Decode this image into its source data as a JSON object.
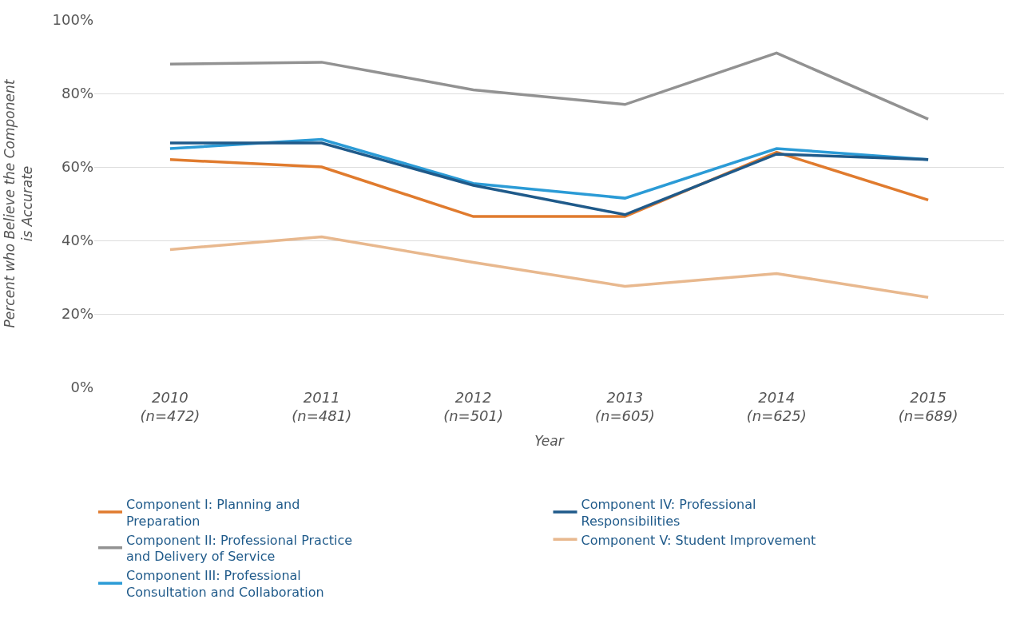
{
  "chart_data": {
    "type": "line",
    "xlabel": "Year",
    "ylabel": "Percent who Believe the Component is Accurate",
    "categories": [
      "2010 (n=472)",
      "2011 (n=481)",
      "2012 (n=501)",
      "2013 (n=605)",
      "2014 (n=625)",
      "2015 (n=689)"
    ],
    "series": [
      {
        "name": "Component I: Planning and Preparation",
        "color": "#e07b2e",
        "values": [
          62,
          60,
          46.5,
          46.5,
          64,
          51
        ]
      },
      {
        "name": "Component II: Professional Practice and Delivery of Service",
        "color": "#929292",
        "values": [
          88,
          88.5,
          81,
          77,
          91,
          73
        ]
      },
      {
        "name": "Component III: Professional Consultation and Collaboration",
        "color": "#2b9bd6",
        "values": [
          65,
          67.5,
          55.5,
          51.5,
          65,
          62
        ]
      },
      {
        "name": "Component IV: Professional Responsibilities",
        "color": "#1f5a8a",
        "values": [
          66.5,
          66.5,
          55,
          47,
          63.5,
          62
        ]
      },
      {
        "name": "Component V: Student Improvement",
        "color": "#e8b88e",
        "values": [
          37.5,
          41,
          34,
          27.5,
          31,
          24.5
        ]
      }
    ],
    "ylim": [
      0,
      100
    ],
    "yticks": [
      {
        "value": 0,
        "label": "0%"
      },
      {
        "value": 20,
        "label": "20%"
      },
      {
        "value": 40,
        "label": "40%"
      },
      {
        "value": 60,
        "label": "60%"
      },
      {
        "value": 80,
        "label": "80%"
      },
      {
        "value": 100,
        "label": "100%"
      }
    ],
    "grid": "y",
    "legend": "bottom",
    "marker": "none",
    "line_style": "solid"
  }
}
